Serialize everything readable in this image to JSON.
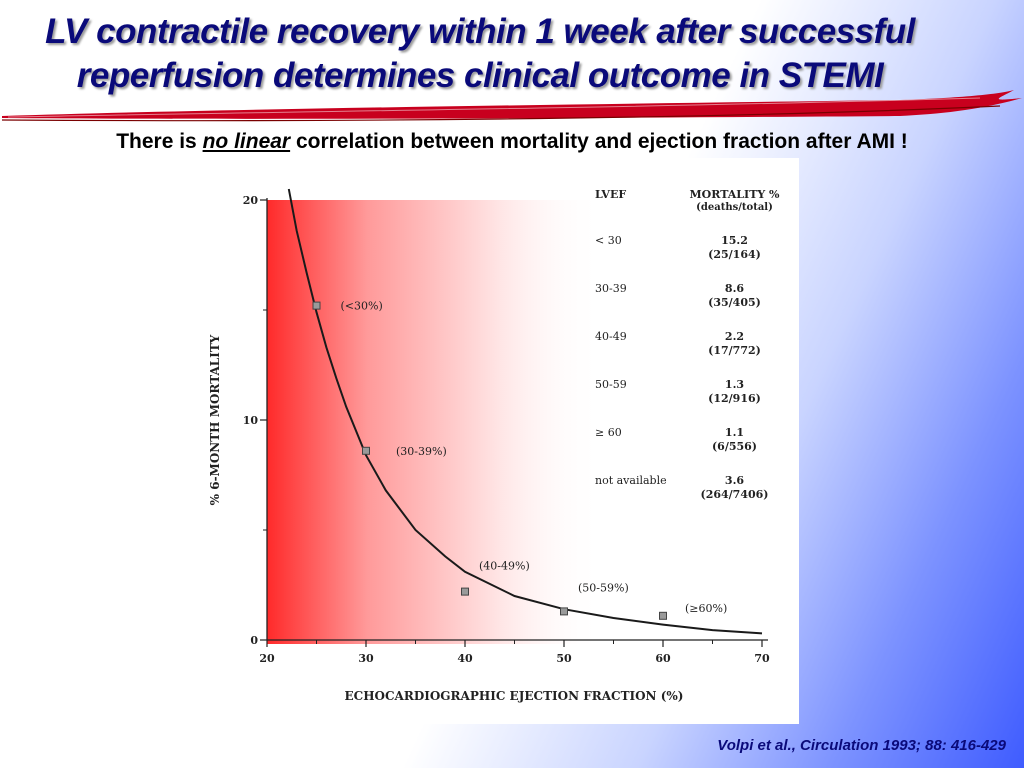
{
  "slide": {
    "title_line1": "LV contractile recovery within 1 week after successful",
    "title_line2": "reperfusion determines clinical outcome in STEMI",
    "subtitle_prefix": "There is",
    "subtitle_emphasis": "no linear",
    "subtitle_suffix": "correlation between mortality and ejection fraction after AMI !",
    "citation": "Volpi et al., Circulation 1993; 88: 416-429",
    "colors": {
      "title": "#0a0a7a",
      "swoosh": "#c8001e",
      "gradient_red": "#ff2a2a",
      "curve": "#1a1a1a"
    }
  },
  "chart_data": {
    "type": "line",
    "title": "",
    "xlabel": "ECHOCARDIOGRAPHIC EJECTION FRACTION (%)",
    "ylabel": "% 6-MONTH MORTALITY",
    "xlim": [
      20,
      70
    ],
    "ylim": [
      0,
      20
    ],
    "x_ticks": [
      20,
      30,
      40,
      50,
      60,
      70
    ],
    "y_ticks": [
      0,
      10,
      20
    ],
    "points": [
      {
        "x": 25,
        "y": 15.2,
        "label": "(<30%)"
      },
      {
        "x": 30,
        "y": 8.6,
        "label": "(30-39%)"
      },
      {
        "x": 40,
        "y": 2.2,
        "label": "(40-49%)"
      },
      {
        "x": 50,
        "y": 1.3,
        "label": "(50-59%)"
      },
      {
        "x": 60,
        "y": 1.1,
        "label": "(≥60%)"
      }
    ],
    "curve": [
      {
        "x": 22.2,
        "y": 20.5
      },
      {
        "x": 23,
        "y": 18.6
      },
      {
        "x": 24,
        "y": 16.7
      },
      {
        "x": 25,
        "y": 14.9
      },
      {
        "x": 26,
        "y": 13.3
      },
      {
        "x": 27,
        "y": 11.9
      },
      {
        "x": 28,
        "y": 10.6
      },
      {
        "x": 30,
        "y": 8.4
      },
      {
        "x": 32,
        "y": 6.8
      },
      {
        "x": 35,
        "y": 5.0
      },
      {
        "x": 38,
        "y": 3.8
      },
      {
        "x": 40,
        "y": 3.1
      },
      {
        "x": 45,
        "y": 2.0
      },
      {
        "x": 50,
        "y": 1.4
      },
      {
        "x": 55,
        "y": 1.0
      },
      {
        "x": 60,
        "y": 0.7
      },
      {
        "x": 65,
        "y": 0.45
      },
      {
        "x": 70,
        "y": 0.3
      }
    ],
    "table": {
      "headers": [
        "LVEF",
        "MORTALITY %",
        "(deaths/total)"
      ],
      "rows": [
        {
          "lvef": "< 30",
          "mortality": "15.2",
          "counts": "(25/164)"
        },
        {
          "lvef": "30-39",
          "mortality": "8.6",
          "counts": "(35/405)"
        },
        {
          "lvef": "40-49",
          "mortality": "2.2",
          "counts": "(17/772)"
        },
        {
          "lvef": "50-59",
          "mortality": "1.3",
          "counts": "(12/916)"
        },
        {
          "lvef": "≥ 60",
          "mortality": "1.1",
          "counts": "(6/556)"
        },
        {
          "lvef": "not available",
          "mortality": "3.6",
          "counts": "(264/7406)"
        }
      ]
    }
  }
}
